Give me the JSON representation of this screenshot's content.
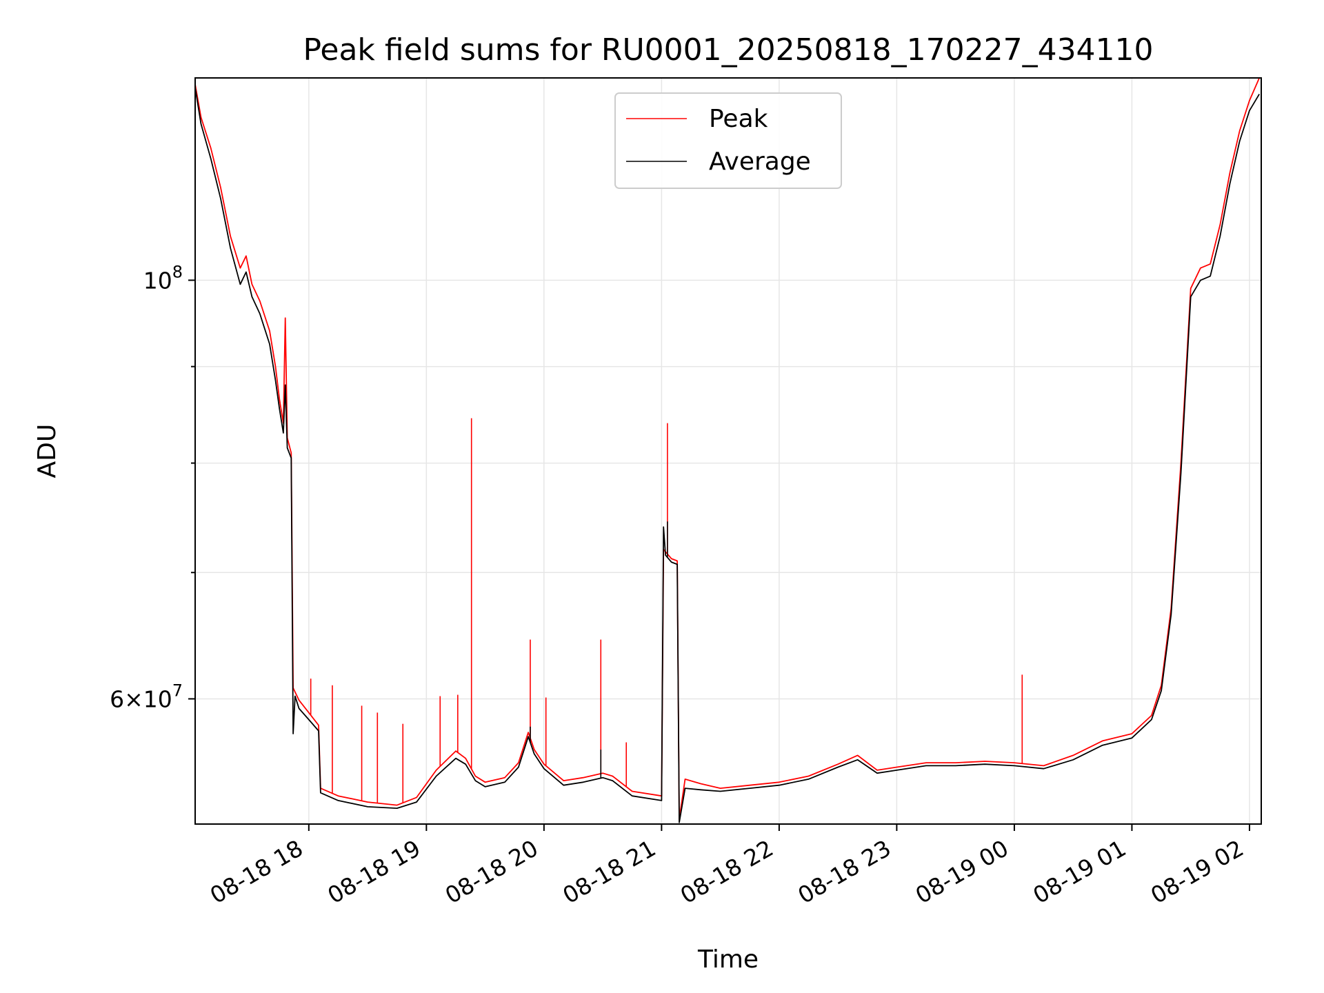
{
  "chart_data": {
    "type": "line",
    "title": "Peak field sums for RU0001_20250818_170227_434110",
    "xlabel": "Time",
    "ylabel": "ADU",
    "y_scale": "log",
    "ylim": [
      51500000,
      128000000
    ],
    "xlim": [
      "2025-08-18 17:02",
      "2025-08-19 02:06"
    ],
    "grid": true,
    "legend_position": "top-center",
    "x_ticks": [
      "08-18 18",
      "08-18 19",
      "08-18 20",
      "08-18 21",
      "08-18 22",
      "08-18 23",
      "08-19 00",
      "08-19 01",
      "08-19 02"
    ],
    "y_ticks": [
      {
        "value": 100000000,
        "label": "10^8"
      },
      {
        "value": 60000000,
        "label": "6×10^7"
      }
    ],
    "y_minor_ticks": [
      70000000,
      80000000,
      90000000
    ],
    "colors": {
      "Peak": "#ff0000",
      "Average": "#000000"
    },
    "series": [
      {
        "name": "Peak",
        "points": [
          [
            "2025-08-18 17:02",
            127000000
          ],
          [
            "2025-08-18 17:05",
            122000000
          ],
          [
            "2025-08-18 17:10",
            117500000
          ],
          [
            "2025-08-18 17:15",
            112000000
          ],
          [
            "2025-08-18 17:20",
            105500000
          ],
          [
            "2025-08-18 17:25",
            101500000
          ],
          [
            "2025-08-18 17:28",
            103000000
          ],
          [
            "2025-08-18 17:31",
            99500000
          ],
          [
            "2025-08-18 17:35",
            97500000
          ],
          [
            "2025-08-18 17:40",
            94000000
          ],
          [
            "2025-08-18 17:43",
            90000000
          ],
          [
            "2025-08-18 17:45",
            86500000
          ],
          [
            "2025-08-18 17:47",
            84000000
          ],
          [
            "2025-08-18 17:48",
            95500000
          ],
          [
            "2025-08-18 17:49",
            82500000
          ],
          [
            "2025-08-18 17:51",
            81000000
          ],
          [
            "2025-08-18 17:52",
            60800000
          ],
          [
            "2025-08-18 17:55",
            59900000
          ],
          [
            "2025-08-18 18:00",
            59000000
          ],
          [
            "2025-08-18 18:05",
            58100000
          ],
          [
            "2025-08-18 18:06",
            53800000
          ],
          [
            "2025-08-18 18:15",
            53300000
          ],
          [
            "2025-08-18 18:30",
            52900000
          ],
          [
            "2025-08-18 18:45",
            52700000
          ],
          [
            "2025-08-18 18:55",
            53200000
          ],
          [
            "2025-08-18 19:05",
            55000000
          ],
          [
            "2025-08-18 19:15",
            56300000
          ],
          [
            "2025-08-18 19:20",
            55800000
          ],
          [
            "2025-08-18 19:25",
            54600000
          ],
          [
            "2025-08-18 19:30",
            54200000
          ],
          [
            "2025-08-18 19:40",
            54500000
          ],
          [
            "2025-08-18 19:47",
            55500000
          ],
          [
            "2025-08-18 19:52",
            57600000
          ],
          [
            "2025-08-18 19:55",
            56400000
          ],
          [
            "2025-08-18 20:00",
            55400000
          ],
          [
            "2025-08-18 20:10",
            54300000
          ],
          [
            "2025-08-18 20:20",
            54500000
          ],
          [
            "2025-08-18 20:30",
            54800000
          ],
          [
            "2025-08-18 20:35",
            54600000
          ],
          [
            "2025-08-18 20:45",
            53600000
          ],
          [
            "2025-08-18 21:00",
            53300000
          ],
          [
            "2025-08-18 21:01",
            72000000
          ],
          [
            "2025-08-18 21:05",
            71200000
          ],
          [
            "2025-08-18 21:08",
            71000000
          ],
          [
            "2025-08-18 21:09",
            51800000
          ],
          [
            "2025-08-18 21:12",
            54400000
          ],
          [
            "2025-08-18 21:20",
            54100000
          ],
          [
            "2025-08-18 21:30",
            53800000
          ],
          [
            "2025-08-18 21:45",
            54000000
          ],
          [
            "2025-08-18 22:00",
            54200000
          ],
          [
            "2025-08-18 22:15",
            54600000
          ],
          [
            "2025-08-18 22:30",
            55400000
          ],
          [
            "2025-08-18 22:40",
            56000000
          ],
          [
            "2025-08-18 22:50",
            55000000
          ],
          [
            "2025-08-18 23:00",
            55200000
          ],
          [
            "2025-08-18 23:15",
            55500000
          ],
          [
            "2025-08-18 23:30",
            55500000
          ],
          [
            "2025-08-18 23:45",
            55600000
          ],
          [
            "2025-08-19 00:00",
            55500000
          ],
          [
            "2025-08-19 00:15",
            55300000
          ],
          [
            "2025-08-19 00:30",
            56000000
          ],
          [
            "2025-08-19 00:45",
            57000000
          ],
          [
            "2025-08-19 01:00",
            57500000
          ],
          [
            "2025-08-19 01:10",
            58800000
          ],
          [
            "2025-08-19 01:15",
            61000000
          ],
          [
            "2025-08-19 01:20",
            67000000
          ],
          [
            "2025-08-19 01:25",
            80000000
          ],
          [
            "2025-08-19 01:30",
            99000000
          ],
          [
            "2025-08-19 01:35",
            101500000
          ],
          [
            "2025-08-19 01:40",
            102000000
          ],
          [
            "2025-08-19 01:45",
            107000000
          ],
          [
            "2025-08-19 01:50",
            114000000
          ],
          [
            "2025-08-19 01:55",
            120000000
          ],
          [
            "2025-08-19 02:00",
            124500000
          ],
          [
            "2025-08-19 02:05",
            128000000
          ]
        ],
        "spikes": [
          [
            "2025-08-18 18:01",
            61500000
          ],
          [
            "2025-08-18 18:12",
            61000000
          ],
          [
            "2025-08-18 18:27",
            59500000
          ],
          [
            "2025-08-18 18:35",
            59000000
          ],
          [
            "2025-08-18 18:48",
            58200000
          ],
          [
            "2025-08-18 19:07",
            60200000
          ],
          [
            "2025-08-18 19:16",
            60300000
          ],
          [
            "2025-08-18 19:23",
            84500000
          ],
          [
            "2025-08-18 19:53",
            64500000
          ],
          [
            "2025-08-18 20:01",
            60100000
          ],
          [
            "2025-08-18 20:29",
            64500000
          ],
          [
            "2025-08-18 20:42",
            56900000
          ],
          [
            "2025-08-18 21:03",
            84000000
          ],
          [
            "2025-08-19 00:04",
            61800000
          ]
        ]
      },
      {
        "name": "Average",
        "points": [
          [
            "2025-08-18 17:02",
            126500000
          ],
          [
            "2025-08-18 17:05",
            121000000
          ],
          [
            "2025-08-18 17:10",
            116000000
          ],
          [
            "2025-08-18 17:15",
            110500000
          ],
          [
            "2025-08-18 17:20",
            104000000
          ],
          [
            "2025-08-18 17:25",
            99500000
          ],
          [
            "2025-08-18 17:28",
            101000000
          ],
          [
            "2025-08-18 17:31",
            98000000
          ],
          [
            "2025-08-18 17:35",
            96000000
          ],
          [
            "2025-08-18 17:40",
            92500000
          ],
          [
            "2025-08-18 17:43",
            88500000
          ],
          [
            "2025-08-18 17:45",
            85500000
          ],
          [
            "2025-08-18 17:47",
            83000000
          ],
          [
            "2025-08-18 17:48",
            88000000
          ],
          [
            "2025-08-18 17:49",
            81500000
          ],
          [
            "2025-08-18 17:51",
            80500000
          ],
          [
            "2025-08-18 17:52",
            57500000
          ],
          [
            "2025-08-18 17:53",
            60200000
          ],
          [
            "2025-08-18 17:55",
            59300000
          ],
          [
            "2025-08-18 18:00",
            58500000
          ],
          [
            "2025-08-18 18:05",
            57700000
          ],
          [
            "2025-08-18 18:06",
            53500000
          ],
          [
            "2025-08-18 18:15",
            53000000
          ],
          [
            "2025-08-18 18:30",
            52600000
          ],
          [
            "2025-08-18 18:45",
            52500000
          ],
          [
            "2025-08-18 18:55",
            52900000
          ],
          [
            "2025-08-18 19:05",
            54600000
          ],
          [
            "2025-08-18 19:15",
            55800000
          ],
          [
            "2025-08-18 19:20",
            55400000
          ],
          [
            "2025-08-18 19:25",
            54300000
          ],
          [
            "2025-08-18 19:30",
            53900000
          ],
          [
            "2025-08-18 19:40",
            54200000
          ],
          [
            "2025-08-18 19:47",
            55200000
          ],
          [
            "2025-08-18 19:52",
            57300000
          ],
          [
            "2025-08-18 19:55",
            56100000
          ],
          [
            "2025-08-18 20:00",
            55100000
          ],
          [
            "2025-08-18 20:10",
            54000000
          ],
          [
            "2025-08-18 20:20",
            54200000
          ],
          [
            "2025-08-18 20:30",
            54500000
          ],
          [
            "2025-08-18 20:35",
            54300000
          ],
          [
            "2025-08-18 20:45",
            53300000
          ],
          [
            "2025-08-18 21:00",
            53000000
          ],
          [
            "2025-08-18 21:01",
            74000000
          ],
          [
            "2025-08-18 21:02",
            71500000
          ],
          [
            "2025-08-18 21:05",
            70900000
          ],
          [
            "2025-08-18 21:08",
            70700000
          ],
          [
            "2025-08-18 21:09",
            51600000
          ],
          [
            "2025-08-18 21:12",
            53800000
          ],
          [
            "2025-08-18 21:20",
            53700000
          ],
          [
            "2025-08-18 21:30",
            53600000
          ],
          [
            "2025-08-18 21:45",
            53800000
          ],
          [
            "2025-08-18 22:00",
            54000000
          ],
          [
            "2025-08-18 22:15",
            54400000
          ],
          [
            "2025-08-18 22:30",
            55200000
          ],
          [
            "2025-08-18 22:40",
            55700000
          ],
          [
            "2025-08-18 22:50",
            54800000
          ],
          [
            "2025-08-18 23:00",
            55000000
          ],
          [
            "2025-08-18 23:15",
            55300000
          ],
          [
            "2025-08-18 23:30",
            55300000
          ],
          [
            "2025-08-18 23:45",
            55400000
          ],
          [
            "2025-08-19 00:00",
            55300000
          ],
          [
            "2025-08-19 00:15",
            55100000
          ],
          [
            "2025-08-19 00:30",
            55700000
          ],
          [
            "2025-08-19 00:45",
            56700000
          ],
          [
            "2025-08-19 01:00",
            57200000
          ],
          [
            "2025-08-19 01:10",
            58500000
          ],
          [
            "2025-08-19 01:15",
            60600000
          ],
          [
            "2025-08-19 01:20",
            66500000
          ],
          [
            "2025-08-19 01:25",
            79000000
          ],
          [
            "2025-08-19 01:30",
            98000000
          ],
          [
            "2025-08-19 01:35",
            100000000
          ],
          [
            "2025-08-19 01:40",
            100500000
          ],
          [
            "2025-08-19 01:45",
            105500000
          ],
          [
            "2025-08-19 01:50",
            112500000
          ],
          [
            "2025-08-19 01:55",
            118500000
          ],
          [
            "2025-08-19 02:00",
            123000000
          ],
          [
            "2025-08-19 02:05",
            125500000
          ]
        ],
        "spikes": [
          [
            "2025-08-18 19:53",
            58000000
          ],
          [
            "2025-08-18 20:29",
            56400000
          ],
          [
            "2025-08-18 21:03",
            74500000
          ]
        ]
      }
    ]
  }
}
